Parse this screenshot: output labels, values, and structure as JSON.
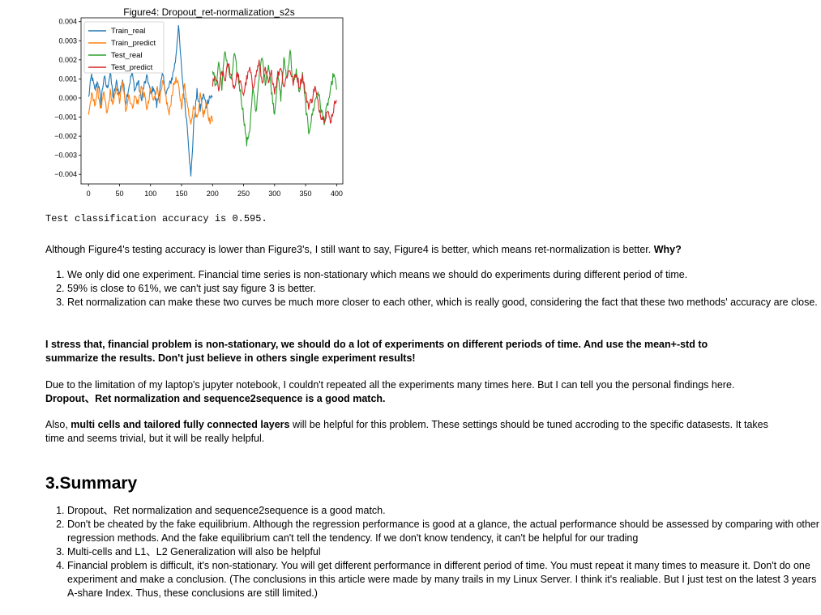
{
  "chart_data": {
    "type": "line",
    "title": "Figure4: Dropout_ret-normalization_s2s",
    "xlim": [
      -12,
      410
    ],
    "ylim": [
      -0.0045,
      0.0042
    ],
    "xticks": [
      "0",
      "50",
      "100",
      "150",
      "200",
      "250",
      "300",
      "350",
      "400"
    ],
    "yticks": [
      "0.004",
      "0.003",
      "0.002",
      "0.001",
      "0.000",
      "−0.001",
      "−0.002",
      "−0.003",
      "−0.004"
    ],
    "legend_position": "upper-left",
    "series": [
      {
        "name": "Train_real",
        "color": "#1f77b4",
        "x_start": 0,
        "x_end": 200,
        "anchors": [
          [
            0,
            0.0
          ],
          [
            5,
            0.0012
          ],
          [
            10,
            0.0004
          ],
          [
            15,
            0.0009
          ],
          [
            20,
            -0.0002
          ],
          [
            25,
            0.0011
          ],
          [
            30,
            0.0005
          ],
          [
            35,
            0.0013
          ],
          [
            40,
            0.0
          ],
          [
            45,
            0.0008
          ],
          [
            50,
            0.0002
          ],
          [
            55,
            0.001
          ],
          [
            60,
            -0.0002
          ],
          [
            65,
            0.0006
          ],
          [
            70,
            0.0013
          ],
          [
            75,
            0.0004
          ],
          [
            80,
            0.0009
          ],
          [
            85,
            -0.0001
          ],
          [
            90,
            0.0007
          ],
          [
            95,
            0.0011
          ],
          [
            100,
            0.0002
          ],
          [
            105,
            0.0006
          ],
          [
            110,
            -0.0004
          ],
          [
            115,
            0.0005
          ],
          [
            120,
            0.0012
          ],
          [
            125,
            0.0002
          ],
          [
            130,
            0.0006
          ],
          [
            135,
            0.0011
          ],
          [
            140,
            0.0019
          ],
          [
            145,
            0.0038
          ],
          [
            150,
            0.0015
          ],
          [
            155,
            -0.0002
          ],
          [
            160,
            -0.0017
          ],
          [
            165,
            -0.0042
          ],
          [
            170,
            -0.0012
          ],
          [
            175,
            0.0003
          ],
          [
            180,
            -0.0006
          ],
          [
            185,
            0.0002
          ],
          [
            190,
            -0.0004
          ],
          [
            195,
            0.0001
          ],
          [
            200,
            0.0
          ]
        ]
      },
      {
        "name": "Train_predict",
        "color": "#ff7f0e",
        "x_start": 0,
        "x_end": 200,
        "anchors": [
          [
            0,
            -0.0008
          ],
          [
            5,
            0.0001
          ],
          [
            10,
            -0.0003
          ],
          [
            15,
            0.0004
          ],
          [
            20,
            -0.0006
          ],
          [
            25,
            0.0002
          ],
          [
            30,
            -0.0009
          ],
          [
            35,
            0.0003
          ],
          [
            40,
            -0.0004
          ],
          [
            45,
            0.0006
          ],
          [
            50,
            -0.0002
          ],
          [
            55,
            0.0008
          ],
          [
            60,
            -0.0006
          ],
          [
            65,
            0.0002
          ],
          [
            70,
            -0.0005
          ],
          [
            75,
            0.0001
          ],
          [
            80,
            -0.0003
          ],
          [
            85,
            0.0006
          ],
          [
            90,
            0.0001
          ],
          [
            95,
            -0.0006
          ],
          [
            100,
            0.0004
          ],
          [
            105,
            -0.0002
          ],
          [
            110,
            0.0006
          ],
          [
            115,
            -0.0001
          ],
          [
            120,
            0.0008
          ],
          [
            125,
            0.0
          ],
          [
            130,
            -0.0009
          ],
          [
            135,
            0.0003
          ],
          [
            140,
            0.001
          ],
          [
            145,
            0.0006
          ],
          [
            150,
            -0.0004
          ],
          [
            155,
            0.0007
          ],
          [
            160,
            -0.0005
          ],
          [
            165,
            -0.0012
          ],
          [
            170,
            -0.0004
          ],
          [
            175,
            -0.0011
          ],
          [
            180,
            0.0002
          ],
          [
            185,
            -0.0009
          ],
          [
            190,
            -0.0002
          ],
          [
            195,
            -0.0012
          ],
          [
            200,
            -0.0011
          ]
        ]
      },
      {
        "name": "Test_real",
        "color": "#2ca02c",
        "x_start": 200,
        "x_end": 400,
        "anchors": [
          [
            200,
            0.0016
          ],
          [
            205,
            0.0005
          ],
          [
            210,
            0.0019
          ],
          [
            215,
            0.0006
          ],
          [
            220,
            0.0025
          ],
          [
            225,
            0.0016
          ],
          [
            230,
            0.0008
          ],
          [
            235,
            0.0023
          ],
          [
            240,
            0.0013
          ],
          [
            245,
            0.0003
          ],
          [
            250,
            -0.0009
          ],
          [
            255,
            -0.0024
          ],
          [
            260,
            -0.0016
          ],
          [
            265,
            0.0005
          ],
          [
            270,
            -0.0008
          ],
          [
            275,
            0.0012
          ],
          [
            280,
            0.0021
          ],
          [
            285,
            0.0008
          ],
          [
            290,
            0.0018
          ],
          [
            295,
            0.0004
          ],
          [
            300,
            -0.0008
          ],
          [
            305,
            0.0012
          ],
          [
            310,
            0.0
          ],
          [
            315,
            0.002
          ],
          [
            320,
            0.001
          ],
          [
            325,
            0.0026
          ],
          [
            330,
            0.0006
          ],
          [
            335,
            0.0014
          ],
          [
            340,
            0.0003
          ],
          [
            345,
            0.0012
          ],
          [
            350,
            -0.0004
          ],
          [
            355,
            -0.0018
          ],
          [
            360,
            -0.001
          ],
          [
            365,
            -0.0002
          ],
          [
            370,
            0.0004
          ],
          [
            375,
            -0.0006
          ],
          [
            380,
            -0.0012
          ],
          [
            385,
            -0.0004
          ],
          [
            390,
            0.0003
          ],
          [
            395,
            0.0013
          ],
          [
            400,
            0.0005
          ]
        ]
      },
      {
        "name": "Test_predict",
        "color": "#d62728",
        "x_start": 200,
        "x_end": 400,
        "anchors": [
          [
            200,
            0.0007
          ],
          [
            205,
            0.0011
          ],
          [
            210,
            0.0004
          ],
          [
            215,
            0.0014
          ],
          [
            220,
            0.0009
          ],
          [
            225,
            0.0018
          ],
          [
            230,
            0.0012
          ],
          [
            235,
            0.0005
          ],
          [
            240,
            0.0013
          ],
          [
            245,
            0.0007
          ],
          [
            250,
            0.0002
          ],
          [
            255,
            0.001
          ],
          [
            260,
            0.0015
          ],
          [
            265,
            0.0006
          ],
          [
            270,
            0.0012
          ],
          [
            275,
            0.0019
          ],
          [
            280,
            0.0008
          ],
          [
            285,
            0.0015
          ],
          [
            290,
            0.0007
          ],
          [
            295,
            0.0013
          ],
          [
            300,
            0.0004
          ],
          [
            305,
            0.0011
          ],
          [
            310,
            0.0017
          ],
          [
            315,
            0.0006
          ],
          [
            320,
            0.0012
          ],
          [
            325,
            0.0015
          ],
          [
            330,
            0.0008
          ],
          [
            335,
            0.0013
          ],
          [
            340,
            0.0006
          ],
          [
            345,
            0.0012
          ],
          [
            350,
            0.0002
          ],
          [
            355,
            -0.0004
          ],
          [
            360,
            -0.0001
          ],
          [
            365,
            0.0006
          ],
          [
            370,
            -0.0003
          ],
          [
            375,
            -0.0009
          ],
          [
            380,
            -0.0011
          ],
          [
            385,
            -0.0007
          ],
          [
            390,
            -0.0012
          ],
          [
            395,
            -0.0006
          ],
          [
            400,
            0.0001
          ]
        ]
      }
    ]
  },
  "output_text": "Test classification accuracy is 0.595.",
  "para1": {
    "text": "Although Figure4's testing accuracy is lower than Figure3's, I still want to say, Figure4 is better, which means ret-normalization is better. ",
    "bold": "Why?"
  },
  "list1": [
    "We only did one experiment. Financial time series is non-stationary which means we should do experiments during different period of time.",
    "59% is close to 61%, we can't just say figure 3 is better.",
    "Ret normalization can make these two curves be much more closer to each other, which is really good, considering the fact that these two methods' accuracy are close."
  ],
  "stress": "I stress that, financial problem is non-stationary, we should do a lot of experiments on different periods of time. And use the mean+-std to summarize the results. Don't just believe in others single experiment results!",
  "para2": {
    "text": "Due to the limitation of my laptop's jupyter notebook, I couldn't repeated all the experiments many times here. But I can tell you the personal findings here. ",
    "bold": "Dropout、Ret normalization and sequence2sequence is a good match."
  },
  "para3": {
    "pre": "Also, ",
    "bold": "multi cells and tailored fully connected layers",
    "post": " will be helpful for this problem. These settings should be tuned accroding to the specific datasests. It takes time and seems trivial, but it will be really helpful."
  },
  "summary_heading": "3.Summary",
  "list2": [
    "Dropout、Ret normalization and sequence2sequence is a good match.",
    "Don't be cheated by the fake equilibrium. Although the regression performance is good at a glance, the actual performance should be assessed by comparing with other regression methods. And the fake equilibrium can't tell the tendency. If we don't know tendency, it can't be helpful for our trading",
    "Multi-cells and L1、L2 Generalization will also be helpful",
    "Financial problem is difficult, it's non-stationary. You will get different performance in different period of time. You must repeat it many times to measure it. Don't do one experiment and make a conclusion. (The conclusions in this article were made by many trails in my Linux Server. I think it's realiable. But I just test on the latest 3 years A-share Index. Thus, these conclusions are still limited.)"
  ]
}
